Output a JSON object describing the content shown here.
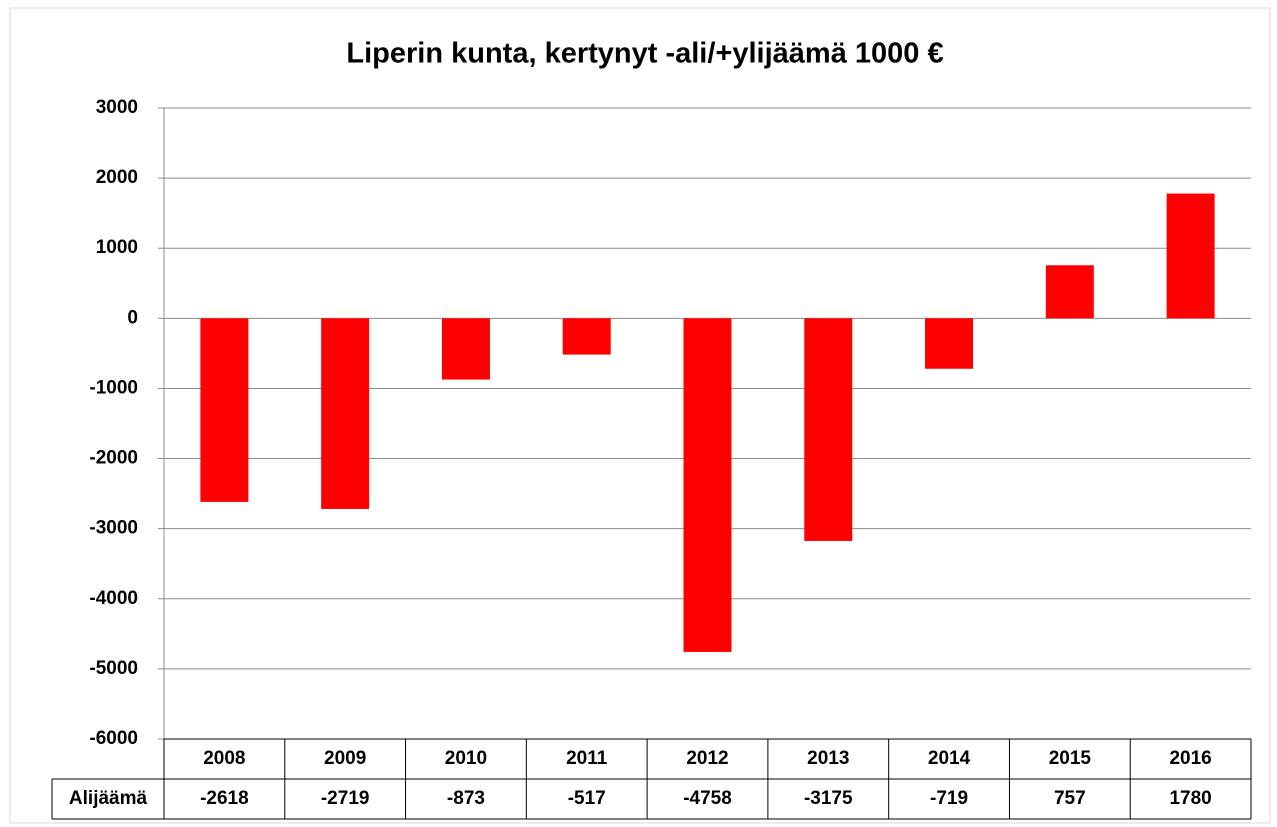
{
  "chart_data": {
    "type": "bar",
    "title": "Liperin kunta, kertynyt -ali/+ylijäämä 1000 €",
    "categories": [
      "2008",
      "2009",
      "2010",
      "2011",
      "2012",
      "2013",
      "2014",
      "2015",
      "2016"
    ],
    "series": [
      {
        "name": "Alijäämä",
        "color": "#ff0000",
        "values": [
          -2618,
          -2719,
          -873,
          -517,
          -4758,
          -3175,
          -719,
          757,
          1780
        ]
      }
    ],
    "ylim": [
      -6000,
      3000
    ],
    "yticks": [
      3000,
      2000,
      1000,
      0,
      -1000,
      -2000,
      -3000,
      -4000,
      -5000,
      -6000
    ],
    "grid": true,
    "data_table": true
  }
}
